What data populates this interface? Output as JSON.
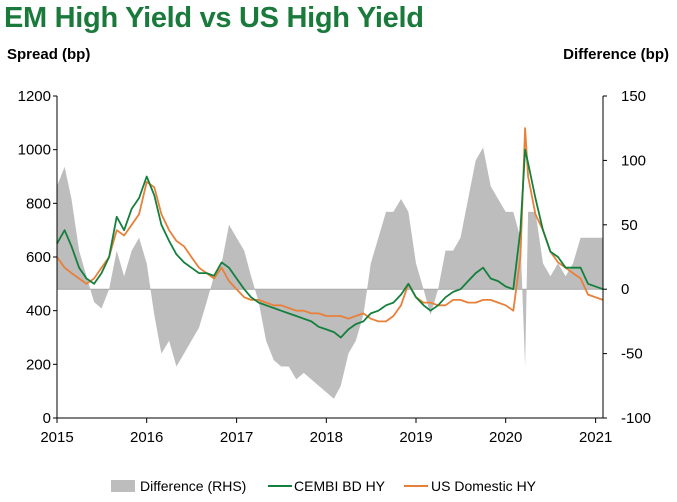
{
  "title": "EM High Yield vs US High Yield",
  "left_axis_title": "Spread (bp)",
  "right_axis_title": "Difference (bp)",
  "colors": {
    "title": "#1a7a3c",
    "difference": "#bdbdbd",
    "cembi": "#15803d",
    "us": "#e8803a"
  },
  "chart_data": {
    "type": "line",
    "x_ticks": [
      "2015",
      "2016",
      "2017",
      "2018",
      "2019",
      "2020",
      "2021"
    ],
    "xlim": [
      "2015-01-01",
      "2021-01-31"
    ],
    "y_left": {
      "label": "Spread (bp)",
      "lim": [
        0,
        1200
      ],
      "ticks": [
        0,
        200,
        400,
        600,
        800,
        1000,
        1200
      ]
    },
    "y_right": {
      "label": "Difference (bp)",
      "lim": [
        -100,
        150
      ],
      "ticks": [
        -100,
        -50,
        0,
        50,
        100,
        150
      ]
    },
    "legend": {
      "position": "bottom",
      "entries": [
        "Difference (RHS)",
        "CEMBI BD HY",
        "US Domestic HY"
      ]
    },
    "series": [
      {
        "name": "CEMBI BD HY",
        "axis": "left",
        "x": [
          "2015-01-01",
          "2015-02-01",
          "2015-03-01",
          "2015-04-01",
          "2015-05-01",
          "2015-06-01",
          "2015-07-01",
          "2015-08-01",
          "2015-09-01",
          "2015-10-01",
          "2015-11-01",
          "2015-12-01",
          "2016-01-01",
          "2016-02-01",
          "2016-03-01",
          "2016-04-01",
          "2016-05-01",
          "2016-06-01",
          "2016-07-01",
          "2016-08-01",
          "2016-09-01",
          "2016-10-01",
          "2016-11-01",
          "2016-12-01",
          "2017-01-01",
          "2017-02-01",
          "2017-03-01",
          "2017-04-01",
          "2017-05-01",
          "2017-06-01",
          "2017-07-01",
          "2017-08-01",
          "2017-09-01",
          "2017-10-01",
          "2017-11-01",
          "2017-12-01",
          "2018-01-01",
          "2018-02-01",
          "2018-03-01",
          "2018-04-01",
          "2018-05-01",
          "2018-06-01",
          "2018-07-01",
          "2018-08-01",
          "2018-09-01",
          "2018-10-01",
          "2018-11-01",
          "2018-12-01",
          "2019-01-01",
          "2019-02-01",
          "2019-03-01",
          "2019-04-01",
          "2019-05-01",
          "2019-06-01",
          "2019-07-01",
          "2019-08-01",
          "2019-09-01",
          "2019-10-01",
          "2019-11-01",
          "2019-12-01",
          "2020-01-01",
          "2020-02-01",
          "2020-03-01",
          "2020-03-20",
          "2020-04-01",
          "2020-05-01",
          "2020-06-01",
          "2020-07-01",
          "2020-08-01",
          "2020-09-01",
          "2020-10-01",
          "2020-11-01",
          "2020-12-01",
          "2021-01-31"
        ],
        "values": [
          650,
          700,
          640,
          560,
          520,
          500,
          540,
          600,
          750,
          700,
          780,
          820,
          900,
          830,
          720,
          660,
          610,
          580,
          560,
          540,
          540,
          530,
          580,
          560,
          520,
          480,
          450,
          430,
          420,
          410,
          400,
          390,
          380,
          370,
          360,
          340,
          330,
          320,
          300,
          330,
          350,
          360,
          390,
          400,
          420,
          430,
          460,
          500,
          450,
          420,
          400,
          420,
          450,
          470,
          480,
          510,
          540,
          560,
          520,
          510,
          490,
          480,
          700,
          1000,
          950,
          820,
          700,
          620,
          600,
          560,
          560,
          560,
          500,
          480
        ]
      },
      {
        "name": "US Domestic HY",
        "axis": "left",
        "x": [
          "2015-01-01",
          "2015-02-01",
          "2015-03-01",
          "2015-04-01",
          "2015-05-01",
          "2015-06-01",
          "2015-07-01",
          "2015-08-01",
          "2015-09-01",
          "2015-10-01",
          "2015-11-01",
          "2015-12-01",
          "2016-01-01",
          "2016-02-01",
          "2016-03-01",
          "2016-04-01",
          "2016-05-01",
          "2016-06-01",
          "2016-07-01",
          "2016-08-01",
          "2016-09-01",
          "2016-10-01",
          "2016-11-01",
          "2016-12-01",
          "2017-01-01",
          "2017-02-01",
          "2017-03-01",
          "2017-04-01",
          "2017-05-01",
          "2017-06-01",
          "2017-07-01",
          "2017-08-01",
          "2017-09-01",
          "2017-10-01",
          "2017-11-01",
          "2017-12-01",
          "2018-01-01",
          "2018-02-01",
          "2018-03-01",
          "2018-04-01",
          "2018-05-01",
          "2018-06-01",
          "2018-07-01",
          "2018-08-01",
          "2018-09-01",
          "2018-10-01",
          "2018-11-01",
          "2018-12-01",
          "2019-01-01",
          "2019-02-01",
          "2019-03-01",
          "2019-04-01",
          "2019-05-01",
          "2019-06-01",
          "2019-07-01",
          "2019-08-01",
          "2019-09-01",
          "2019-10-01",
          "2019-11-01",
          "2019-12-01",
          "2020-01-01",
          "2020-02-01",
          "2020-03-01",
          "2020-03-20",
          "2020-04-01",
          "2020-05-01",
          "2020-06-01",
          "2020-07-01",
          "2020-08-01",
          "2020-09-01",
          "2020-10-01",
          "2020-11-01",
          "2020-12-01",
          "2021-01-31"
        ],
        "values": [
          600,
          560,
          540,
          520,
          500,
          520,
          560,
          600,
          700,
          680,
          720,
          760,
          880,
          860,
          760,
          700,
          660,
          640,
          600,
          560,
          540,
          520,
          560,
          510,
          480,
          450,
          440,
          440,
          430,
          420,
          420,
          410,
          400,
          400,
          390,
          390,
          380,
          380,
          380,
          370,
          380,
          390,
          370,
          360,
          360,
          380,
          420,
          500,
          450,
          430,
          430,
          420,
          420,
          440,
          440,
          430,
          430,
          440,
          440,
          430,
          420,
          400,
          600,
          1080,
          900,
          760,
          700,
          620,
          580,
          560,
          540,
          520,
          460,
          440
        ]
      },
      {
        "name": "Difference (RHS)",
        "axis": "right",
        "type": "area",
        "x": [
          "2015-01-01",
          "2015-02-01",
          "2015-03-01",
          "2015-04-01",
          "2015-05-01",
          "2015-06-01",
          "2015-07-01",
          "2015-08-01",
          "2015-09-01",
          "2015-10-01",
          "2015-11-01",
          "2015-12-01",
          "2016-01-01",
          "2016-02-01",
          "2016-03-01",
          "2016-04-01",
          "2016-05-01",
          "2016-06-01",
          "2016-07-01",
          "2016-08-01",
          "2016-09-01",
          "2016-10-01",
          "2016-11-01",
          "2016-12-01",
          "2017-01-01",
          "2017-02-01",
          "2017-03-01",
          "2017-04-01",
          "2017-05-01",
          "2017-06-01",
          "2017-07-01",
          "2017-08-01",
          "2017-09-01",
          "2017-10-01",
          "2017-11-01",
          "2017-12-01",
          "2018-01-01",
          "2018-02-01",
          "2018-03-01",
          "2018-04-01",
          "2018-05-01",
          "2018-06-01",
          "2018-07-01",
          "2018-08-01",
          "2018-09-01",
          "2018-10-01",
          "2018-11-01",
          "2018-12-01",
          "2019-01-01",
          "2019-02-01",
          "2019-03-01",
          "2019-04-01",
          "2019-05-01",
          "2019-06-01",
          "2019-07-01",
          "2019-08-01",
          "2019-09-01",
          "2019-10-01",
          "2019-11-01",
          "2019-12-01",
          "2020-01-01",
          "2020-02-01",
          "2020-03-01",
          "2020-03-20",
          "2020-04-01",
          "2020-05-01",
          "2020-06-01",
          "2020-07-01",
          "2020-08-01",
          "2020-09-01",
          "2020-10-01",
          "2020-11-01",
          "2020-12-01",
          "2021-01-31"
        ],
        "values": [
          80,
          95,
          70,
          30,
          10,
          -10,
          -15,
          0,
          30,
          10,
          30,
          40,
          20,
          -20,
          -50,
          -40,
          -60,
          -50,
          -40,
          -30,
          -10,
          10,
          20,
          50,
          40,
          30,
          10,
          -10,
          -40,
          -55,
          -60,
          -60,
          -70,
          -65,
          -70,
          -75,
          -80,
          -85,
          -75,
          -50,
          -40,
          -20,
          20,
          40,
          60,
          60,
          70,
          60,
          20,
          0,
          -20,
          0,
          30,
          30,
          40,
          70,
          100,
          110,
          80,
          70,
          60,
          60,
          40,
          -60,
          60,
          60,
          20,
          10,
          20,
          10,
          20,
          40,
          40,
          40
        ]
      }
    ]
  }
}
